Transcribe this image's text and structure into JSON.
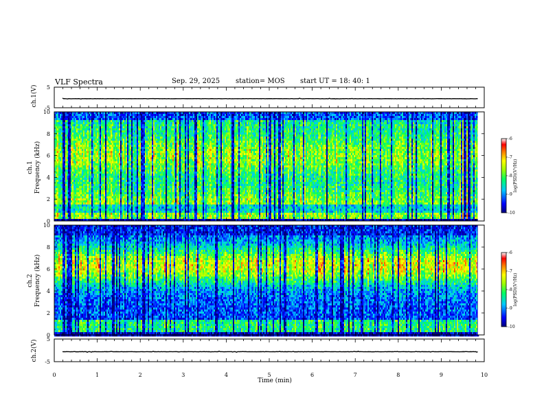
{
  "header": {
    "title": "VLF Spectra",
    "date": "Sep. 29, 2025",
    "station": "station= MOS",
    "start": "start  UT =   18: 40: 1"
  },
  "chart_data": [
    {
      "type": "line",
      "panel": "ch1-waveform",
      "title": "",
      "ylabel": "ch.1(V)",
      "ylim": [
        -5,
        5
      ],
      "yticks": [
        "5",
        "-5"
      ],
      "xlim": [
        0,
        10
      ],
      "series": [
        {
          "name": "ch.1",
          "approx_level": -0.6
        }
      ]
    },
    {
      "type": "heatmap",
      "panel": "ch1-spectrogram",
      "ylabel": "ch.1\nFrequency (kHz)",
      "ylabel_line1": "ch.1",
      "ylabel_line2": "Frequency (kHz)",
      "ylim": [
        0,
        10
      ],
      "yticks": [
        "0",
        "2",
        "4",
        "6",
        "8",
        "10"
      ],
      "xlim": [
        0,
        10
      ],
      "data_end_min": 9.85,
      "colorbar": {
        "label": "log(PSD)(V²/Hz)",
        "range": [
          -10,
          -6
        ],
        "ticks": [
          "-6",
          "-7",
          "-8",
          "-9",
          "-10"
        ]
      }
    },
    {
      "type": "heatmap",
      "panel": "ch2-spectrogram",
      "ylabel": "ch.2\nFrequency (kHz)",
      "ylabel_line1": "ch.2",
      "ylabel_line2": "Frequency (kHz)",
      "ylim": [
        0,
        10
      ],
      "yticks": [
        "0",
        "2",
        "4",
        "6",
        "8",
        "10"
      ],
      "xlim": [
        0,
        10
      ],
      "data_end_min": 9.85,
      "colorbar": {
        "label": "log(PSD)(V²/Hz)",
        "range": [
          -10,
          -6
        ],
        "ticks": [
          "-6",
          "-7",
          "-8",
          "-9",
          "-10"
        ]
      }
    },
    {
      "type": "line",
      "panel": "ch2-waveform",
      "ylabel": "ch.2(V)",
      "ylim": [
        -5,
        5
      ],
      "yticks": [
        "5",
        "-5"
      ],
      "xlim": [
        0,
        10
      ],
      "xlabel": "Time (min)",
      "xticks": [
        "0",
        "1",
        "2",
        "3",
        "4",
        "5",
        "6",
        "7",
        "8",
        "9",
        "10"
      ],
      "series": [
        {
          "name": "ch.2",
          "approx_level": -0.6
        }
      ]
    }
  ],
  "colors": {
    "scale": [
      "#00007a",
      "#0000ff",
      "#00c8ff",
      "#00ff64",
      "#a0ff00",
      "#ffff00",
      "#ff8000",
      "#ff0000",
      "#ffffff"
    ]
  }
}
